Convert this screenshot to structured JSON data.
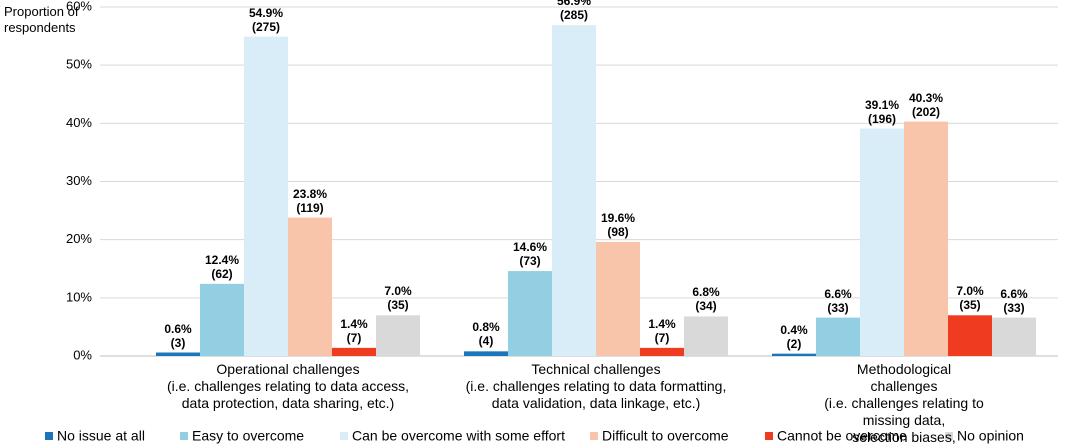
{
  "chart_data": {
    "type": "bar",
    "y_label": "Proportion of\nrespondents",
    "categories": [
      "Operational challenges\n(i.e. challenges relating to data access,\ndata protection, data sharing, etc.)",
      "Technical challenges\n(i.e. challenges relating to data formatting,\ndata validation, data linkage, etc.)",
      "Methodological challenges\n(i.e. challenges relating to missing data,\nselection biases, confounding factors, etc.)"
    ],
    "series": [
      {
        "name": "No issue at all",
        "color": "#1b75bb",
        "values": [
          0.6,
          0.8,
          0.4
        ],
        "value_labels": [
          "0.6%\n(3)",
          "0.8%\n(4)",
          "0.4%\n(2)"
        ]
      },
      {
        "name": "Easy to overcome",
        "color": "#92cfe2",
        "values": [
          12.4,
          14.6,
          6.6
        ],
        "value_labels": [
          "12.4%\n(62)",
          "14.6%\n(73)",
          "6.6%\n(33)"
        ]
      },
      {
        "name": "Can be overcome with some effort",
        "color": "#d9edf8",
        "values": [
          54.9,
          56.9,
          39.1
        ],
        "value_labels": [
          "54.9%\n(275)",
          "56.9%\n(285)",
          "39.1%\n(196)"
        ]
      },
      {
        "name": "Difficult to overcome",
        "color": "#f8c5aa",
        "values": [
          23.8,
          19.6,
          40.3
        ],
        "value_labels": [
          "23.8%\n(119)",
          "19.6%\n(98)",
          "40.3%\n(202)"
        ]
      },
      {
        "name": "Cannot be overcome",
        "color": "#ef3b1f",
        "values": [
          1.4,
          1.4,
          7.0
        ],
        "value_labels": [
          "1.4%\n(7)",
          "1.4%\n(7)",
          "7.0%\n(35)"
        ]
      },
      {
        "name": "No opinion",
        "color": "#d9d9d9",
        "values": [
          7.0,
          6.8,
          6.6
        ],
        "value_labels": [
          "7.0%\n(35)",
          "6.8%\n(34)",
          "6.6%\n(33)"
        ]
      }
    ],
    "ylim": [
      0,
      60
    ],
    "yticks": [
      {
        "value": 0,
        "label": "0%"
      },
      {
        "value": 10,
        "label": "10%"
      },
      {
        "value": 20,
        "label": "20%"
      },
      {
        "value": 30,
        "label": "30%"
      },
      {
        "value": 40,
        "label": "40%"
      },
      {
        "value": 50,
        "label": "50%"
      },
      {
        "value": 60,
        "label": "60%"
      }
    ],
    "grid": true,
    "legend": "bottom"
  }
}
